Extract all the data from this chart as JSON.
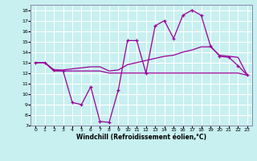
{
  "xlabel": "Windchill (Refroidissement éolien,°C)",
  "bg_color": "#c8f0f0",
  "grid_color": "#ffffff",
  "line_color": "#990099",
  "xlim": [
    -0.5,
    23.5
  ],
  "ylim": [
    7,
    18.5
  ],
  "yticks": [
    7,
    8,
    9,
    10,
    11,
    12,
    13,
    14,
    15,
    16,
    17,
    18
  ],
  "xticks": [
    0,
    1,
    2,
    3,
    4,
    5,
    6,
    7,
    8,
    9,
    10,
    11,
    12,
    13,
    14,
    15,
    16,
    17,
    18,
    19,
    20,
    21,
    22,
    23
  ],
  "line1_x": [
    0,
    1,
    2,
    3,
    4,
    5,
    6,
    7,
    8,
    9,
    10,
    11,
    12,
    13,
    14,
    15,
    16,
    17,
    18,
    19,
    20,
    21,
    22,
    23
  ],
  "line1_y": [
    13.0,
    13.0,
    12.3,
    12.2,
    9.2,
    9.0,
    10.7,
    7.4,
    7.3,
    10.4,
    15.1,
    15.1,
    12.0,
    16.5,
    17.0,
    15.3,
    17.5,
    18.0,
    17.5,
    14.6,
    13.6,
    13.5,
    12.7,
    11.8
  ],
  "line2_x": [
    0,
    1,
    2,
    3,
    4,
    5,
    6,
    7,
    8,
    9,
    10,
    11,
    12,
    13,
    14,
    15,
    16,
    17,
    18,
    19,
    20,
    21,
    22,
    23
  ],
  "line2_y": [
    13.0,
    13.0,
    12.2,
    12.2,
    12.2,
    12.2,
    12.2,
    12.2,
    12.0,
    12.0,
    12.0,
    12.0,
    12.0,
    12.0,
    12.0,
    12.0,
    12.0,
    12.0,
    12.0,
    12.0,
    12.0,
    12.0,
    12.0,
    11.8
  ],
  "line3_x": [
    0,
    1,
    2,
    3,
    4,
    5,
    6,
    7,
    8,
    9,
    10,
    11,
    12,
    13,
    14,
    15,
    16,
    17,
    18,
    19,
    20,
    21,
    22,
    23
  ],
  "line3_y": [
    13.0,
    13.0,
    12.3,
    12.3,
    12.4,
    12.5,
    12.6,
    12.6,
    12.2,
    12.3,
    12.8,
    13.0,
    13.2,
    13.4,
    13.6,
    13.7,
    14.0,
    14.2,
    14.5,
    14.5,
    13.7,
    13.6,
    13.5,
    11.8
  ]
}
